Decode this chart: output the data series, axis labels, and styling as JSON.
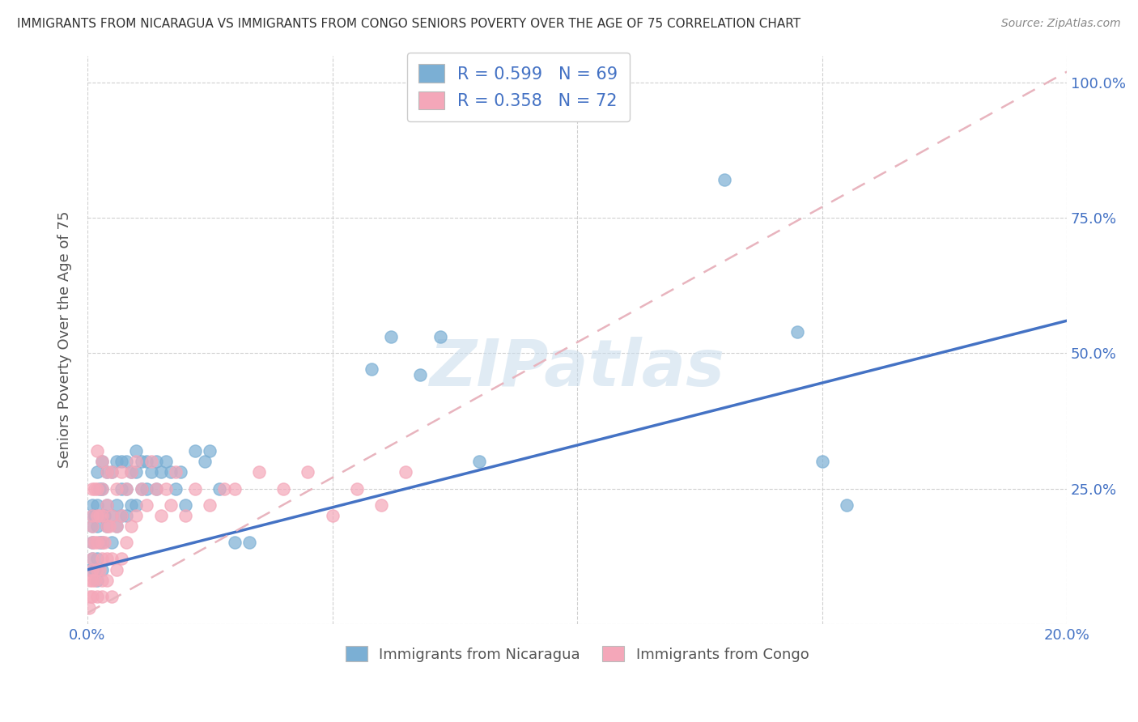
{
  "title": "IMMIGRANTS FROM NICARAGUA VS IMMIGRANTS FROM CONGO SENIORS POVERTY OVER THE AGE OF 75 CORRELATION CHART",
  "source": "Source: ZipAtlas.com",
  "ylabel": "Seniors Poverty Over the Age of 75",
  "xlim": [
    0.0,
    0.2
  ],
  "ylim": [
    0.0,
    1.05
  ],
  "nicaragua_color": "#7bafd4",
  "congo_color": "#f4a7b9",
  "nicaragua_line_color": "#4472C4",
  "congo_line_color": "#e8b4be",
  "nicaragua_R": 0.599,
  "nicaragua_N": 69,
  "congo_R": 0.358,
  "congo_N": 72,
  "nicaragua_label": "Immigrants from Nicaragua",
  "congo_label": "Immigrants from Congo",
  "watermark_text": "ZIPatlas",
  "nicaragua_trend_x0": 0.0,
  "nicaragua_trend_y0": 0.1,
  "nicaragua_trend_x1": 0.2,
  "nicaragua_trend_y1": 0.56,
  "congo_trend_x0": 0.0,
  "congo_trend_y0": 0.02,
  "congo_trend_x1": 0.2,
  "congo_trend_y1": 1.02,
  "nicaragua_x": [
    0.0005,
    0.001,
    0.001,
    0.001,
    0.001,
    0.001,
    0.0015,
    0.0015,
    0.002,
    0.002,
    0.002,
    0.002,
    0.002,
    0.0025,
    0.0025,
    0.003,
    0.003,
    0.003,
    0.003,
    0.003,
    0.0035,
    0.004,
    0.004,
    0.004,
    0.005,
    0.005,
    0.005,
    0.006,
    0.006,
    0.006,
    0.007,
    0.007,
    0.007,
    0.008,
    0.008,
    0.008,
    0.009,
    0.009,
    0.01,
    0.01,
    0.01,
    0.011,
    0.011,
    0.012,
    0.012,
    0.013,
    0.014,
    0.014,
    0.015,
    0.016,
    0.017,
    0.018,
    0.019,
    0.02,
    0.022,
    0.024,
    0.025,
    0.027,
    0.03,
    0.033,
    0.058,
    0.062,
    0.068,
    0.072,
    0.08,
    0.13,
    0.145,
    0.15,
    0.155
  ],
  "nicaragua_y": [
    0.1,
    0.12,
    0.15,
    0.18,
    0.2,
    0.22,
    0.1,
    0.2,
    0.08,
    0.12,
    0.18,
    0.22,
    0.28,
    0.15,
    0.25,
    0.1,
    0.15,
    0.2,
    0.25,
    0.3,
    0.2,
    0.18,
    0.22,
    0.28,
    0.15,
    0.2,
    0.28,
    0.18,
    0.22,
    0.3,
    0.2,
    0.25,
    0.3,
    0.2,
    0.25,
    0.3,
    0.22,
    0.28,
    0.22,
    0.28,
    0.32,
    0.25,
    0.3,
    0.25,
    0.3,
    0.28,
    0.25,
    0.3,
    0.28,
    0.3,
    0.28,
    0.25,
    0.28,
    0.22,
    0.32,
    0.3,
    0.32,
    0.25,
    0.15,
    0.15,
    0.47,
    0.53,
    0.46,
    0.53,
    0.3,
    0.82,
    0.54,
    0.3,
    0.22
  ],
  "congo_x": [
    0.0003,
    0.0005,
    0.0005,
    0.001,
    0.001,
    0.001,
    0.001,
    0.001,
    0.001,
    0.001,
    0.001,
    0.0015,
    0.0015,
    0.0015,
    0.002,
    0.002,
    0.002,
    0.002,
    0.002,
    0.002,
    0.0025,
    0.0025,
    0.003,
    0.003,
    0.003,
    0.003,
    0.003,
    0.003,
    0.003,
    0.0035,
    0.004,
    0.004,
    0.004,
    0.004,
    0.004,
    0.0045,
    0.005,
    0.005,
    0.005,
    0.005,
    0.006,
    0.006,
    0.006,
    0.007,
    0.007,
    0.007,
    0.008,
    0.008,
    0.009,
    0.009,
    0.01,
    0.01,
    0.011,
    0.012,
    0.013,
    0.014,
    0.015,
    0.016,
    0.017,
    0.018,
    0.02,
    0.022,
    0.025,
    0.028,
    0.03,
    0.035,
    0.04,
    0.045,
    0.05,
    0.055,
    0.06,
    0.065
  ],
  "congo_y": [
    0.03,
    0.05,
    0.08,
    0.05,
    0.08,
    0.1,
    0.12,
    0.15,
    0.18,
    0.2,
    0.25,
    0.08,
    0.15,
    0.25,
    0.05,
    0.1,
    0.15,
    0.2,
    0.25,
    0.32,
    0.1,
    0.2,
    0.05,
    0.08,
    0.12,
    0.15,
    0.2,
    0.25,
    0.3,
    0.15,
    0.08,
    0.12,
    0.18,
    0.22,
    0.28,
    0.18,
    0.05,
    0.12,
    0.2,
    0.28,
    0.1,
    0.18,
    0.25,
    0.12,
    0.2,
    0.28,
    0.15,
    0.25,
    0.18,
    0.28,
    0.2,
    0.3,
    0.25,
    0.22,
    0.3,
    0.25,
    0.2,
    0.25,
    0.22,
    0.28,
    0.2,
    0.25,
    0.22,
    0.25,
    0.25,
    0.28,
    0.25,
    0.28,
    0.2,
    0.25,
    0.22,
    0.28
  ]
}
